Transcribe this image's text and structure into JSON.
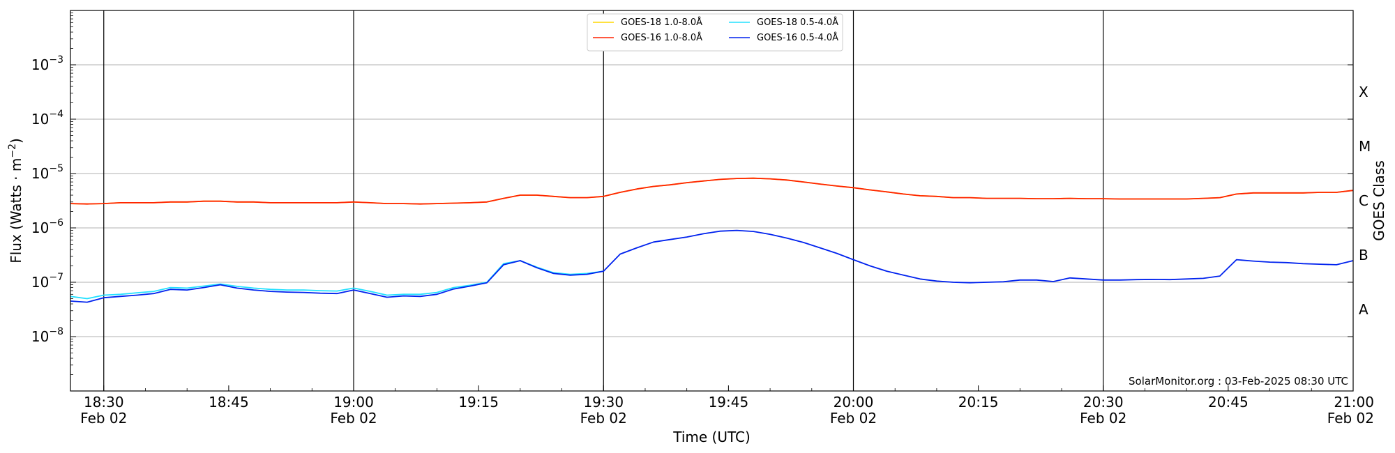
{
  "chart_data": {
    "type": "line",
    "title": "",
    "xlabel": "Time (UTC)",
    "ylabel_main": "Flux (Watts · m",
    "ylabel_exp": "−2",
    "ylabel_close": ")",
    "y2label": "GOES Class",
    "yscale": "log",
    "xlim": [
      "18:26",
      "21:00"
    ],
    "ylim": [
      1e-09,
      0.01
    ],
    "y_ticks": [
      {
        "value": 1e-08,
        "base": "10",
        "exp": "−8"
      },
      {
        "value": 1e-07,
        "base": "10",
        "exp": "−7"
      },
      {
        "value": 1e-06,
        "base": "10",
        "exp": "−6"
      },
      {
        "value": 1e-05,
        "base": "10",
        "exp": "−5"
      },
      {
        "value": 0.0001,
        "base": "10",
        "exp": "−4"
      },
      {
        "value": 0.001,
        "base": "10",
        "exp": "−3"
      }
    ],
    "x_ticks": [
      {
        "time": "18:30",
        "label": "18:30",
        "date": "Feb 02"
      },
      {
        "time": "18:45",
        "label": "18:45",
        "date": ""
      },
      {
        "time": "19:00",
        "label": "19:00",
        "date": "Feb 02"
      },
      {
        "time": "19:15",
        "label": "19:15",
        "date": ""
      },
      {
        "time": "19:30",
        "label": "19:30",
        "date": "Feb 02"
      },
      {
        "time": "19:45",
        "label": "19:45",
        "date": ""
      },
      {
        "time": "20:00",
        "label": "20:00",
        "date": "Feb 02"
      },
      {
        "time": "20:15",
        "label": "20:15",
        "date": ""
      },
      {
        "time": "20:30",
        "label": "20:30",
        "date": "Feb 02"
      },
      {
        "time": "20:45",
        "label": "20:45",
        "date": ""
      },
      {
        "time": "21:00",
        "label": "21:00",
        "date": "Feb 02"
      }
    ],
    "vlines": [
      "18:30",
      "19:00",
      "19:30",
      "20:00",
      "20:30"
    ],
    "grid": "horizontal",
    "goes_classes": [
      {
        "label": "A",
        "value": 3.16e-08
      },
      {
        "label": "B",
        "value": 3.16e-07
      },
      {
        "label": "C",
        "value": 3.16e-06
      },
      {
        "label": "M",
        "value": 3.16e-05
      },
      {
        "label": "X",
        "value": 0.000316
      }
    ],
    "legend": {
      "position": "top-center",
      "entries": [
        {
          "name": "GOES-18 1.0-8.0Å",
          "color": "#ffd700"
        },
        {
          "name": "GOES-16 1.0-8.0Å",
          "color": "#ff2200"
        },
        {
          "name": "GOES-18 0.5-4.0Å",
          "color": "#22e0ff"
        },
        {
          "name": "GOES-16 0.5-4.0Å",
          "color": "#0022ee"
        }
      ]
    },
    "annotation": "SolarMonitor.org : 03-Feb-2025 08:30 UTC",
    "series": [
      {
        "name": "GOES-18 1.0-8.0Å",
        "color": "#ffd700",
        "x": [
          "18:26",
          "18:28",
          "18:30",
          "18:32",
          "18:34",
          "18:36",
          "18:38",
          "18:40",
          "18:42",
          "18:44",
          "18:46",
          "18:48",
          "18:50",
          "18:52",
          "18:54",
          "18:56",
          "18:58",
          "19:00",
          "19:02",
          "19:04",
          "19:06",
          "19:08",
          "19:10",
          "19:12",
          "19:14",
          "19:16",
          "19:18",
          "19:20",
          "19:22",
          "19:24",
          "19:26",
          "19:28",
          "19:30",
          "19:32",
          "19:34",
          "19:36",
          "19:38",
          "19:40",
          "19:42",
          "19:44",
          "19:46",
          "19:48",
          "19:50",
          "19:52",
          "19:54",
          "19:56",
          "19:58",
          "20:00",
          "20:02",
          "20:04",
          "20:06",
          "20:08",
          "20:10",
          "20:12",
          "20:14",
          "20:16",
          "20:18",
          "20:20",
          "20:22",
          "20:24",
          "20:26",
          "20:28",
          "20:30",
          "20:32",
          "20:34",
          "20:36",
          "20:38",
          "20:40",
          "20:42",
          "20:44",
          "20:46",
          "20:48",
          "20:50",
          "20:52",
          "20:54",
          "20:56",
          "20:58",
          "21:00"
        ],
        "y": [
          2.8e-06,
          2.75e-06,
          2.8e-06,
          2.9e-06,
          2.9e-06,
          2.9e-06,
          3e-06,
          3e-06,
          3.1e-06,
          3.1e-06,
          3e-06,
          3e-06,
          2.9e-06,
          2.9e-06,
          2.9e-06,
          2.9e-06,
          2.9e-06,
          3e-06,
          2.9e-06,
          2.8e-06,
          2.8e-06,
          2.75e-06,
          2.8e-06,
          2.85e-06,
          2.9e-06,
          3e-06,
          3.5e-06,
          4e-06,
          4e-06,
          3.8e-06,
          3.6e-06,
          3.6e-06,
          3.8e-06,
          4.5e-06,
          5.2e-06,
          5.8e-06,
          6.2e-06,
          6.8e-06,
          7.3e-06,
          7.8e-06,
          8.1e-06,
          8.2e-06,
          8e-06,
          7.6e-06,
          7e-06,
          6.4e-06,
          5.9e-06,
          5.5e-06,
          5e-06,
          4.6e-06,
          4.2e-06,
          3.9e-06,
          3.8e-06,
          3.6e-06,
          3.6e-06,
          3.5e-06,
          3.5e-06,
          3.5e-06,
          3.45e-06,
          3.45e-06,
          3.5e-06,
          3.45e-06,
          3.45e-06,
          3.4e-06,
          3.4e-06,
          3.4e-06,
          3.4e-06,
          3.4e-06,
          3.5e-06,
          3.6e-06,
          4.2e-06,
          4.4e-06,
          4.4e-06,
          4.4e-06,
          4.4e-06,
          4.5e-06,
          4.5e-06,
          4.9e-06
        ]
      },
      {
        "name": "GOES-16 1.0-8.0Å",
        "color": "#ff2200",
        "x": [
          "18:26",
          "18:28",
          "18:30",
          "18:32",
          "18:34",
          "18:36",
          "18:38",
          "18:40",
          "18:42",
          "18:44",
          "18:46",
          "18:48",
          "18:50",
          "18:52",
          "18:54",
          "18:56",
          "18:58",
          "19:00",
          "19:02",
          "19:04",
          "19:06",
          "19:08",
          "19:10",
          "19:12",
          "19:14",
          "19:16",
          "19:18",
          "19:20",
          "19:22",
          "19:24",
          "19:26",
          "19:28",
          "19:30",
          "19:32",
          "19:34",
          "19:36",
          "19:38",
          "19:40",
          "19:42",
          "19:44",
          "19:46",
          "19:48",
          "19:50",
          "19:52",
          "19:54",
          "19:56",
          "19:58",
          "20:00",
          "20:02",
          "20:04",
          "20:06",
          "20:08",
          "20:10",
          "20:12",
          "20:14",
          "20:16",
          "20:18",
          "20:20",
          "20:22",
          "20:24",
          "20:26",
          "20:28",
          "20:30",
          "20:32",
          "20:34",
          "20:36",
          "20:38",
          "20:40",
          "20:42",
          "20:44",
          "20:46",
          "20:48",
          "20:50",
          "20:52",
          "20:54",
          "20:56",
          "20:58",
          "21:00"
        ],
        "y": [
          2.8e-06,
          2.75e-06,
          2.8e-06,
          2.9e-06,
          2.9e-06,
          2.9e-06,
          3e-06,
          3e-06,
          3.1e-06,
          3.1e-06,
          3e-06,
          3e-06,
          2.9e-06,
          2.9e-06,
          2.9e-06,
          2.9e-06,
          2.9e-06,
          3e-06,
          2.9e-06,
          2.8e-06,
          2.8e-06,
          2.75e-06,
          2.8e-06,
          2.85e-06,
          2.9e-06,
          3e-06,
          3.5e-06,
          4e-06,
          4e-06,
          3.8e-06,
          3.6e-06,
          3.6e-06,
          3.8e-06,
          4.5e-06,
          5.2e-06,
          5.8e-06,
          6.2e-06,
          6.8e-06,
          7.3e-06,
          7.8e-06,
          8.1e-06,
          8.2e-06,
          8e-06,
          7.6e-06,
          7e-06,
          6.4e-06,
          5.9e-06,
          5.5e-06,
          5e-06,
          4.6e-06,
          4.2e-06,
          3.9e-06,
          3.8e-06,
          3.6e-06,
          3.6e-06,
          3.5e-06,
          3.5e-06,
          3.5e-06,
          3.45e-06,
          3.45e-06,
          3.5e-06,
          3.45e-06,
          3.45e-06,
          3.4e-06,
          3.4e-06,
          3.4e-06,
          3.4e-06,
          3.4e-06,
          3.5e-06,
          3.6e-06,
          4.2e-06,
          4.4e-06,
          4.4e-06,
          4.4e-06,
          4.4e-06,
          4.5e-06,
          4.5e-06,
          4.9e-06
        ]
      },
      {
        "name": "GOES-18 0.5-4.0Å",
        "color": "#22e0ff",
        "x": [
          "18:26",
          "18:28",
          "18:30",
          "18:32",
          "18:34",
          "18:36",
          "18:38",
          "18:40",
          "18:42",
          "18:44",
          "18:46",
          "18:48",
          "18:50",
          "18:52",
          "18:54",
          "18:56",
          "18:58",
          "19:00",
          "19:02",
          "19:04",
          "19:06",
          "19:08",
          "19:10",
          "19:12",
          "19:14",
          "19:16",
          "19:18",
          "19:20",
          "19:22",
          "19:24",
          "19:26",
          "19:28",
          "19:30"
        ],
        "y": [
          5.5e-08,
          5e-08,
          5.8e-08,
          6e-08,
          6.4e-08,
          6.8e-08,
          8e-08,
          7.8e-08,
          8.5e-08,
          9.3e-08,
          8.4e-08,
          7.8e-08,
          7.4e-08,
          7.2e-08,
          7.2e-08,
          7e-08,
          6.9e-08,
          7.8e-08,
          6.8e-08,
          5.8e-08,
          6e-08,
          6e-08,
          6.5e-08,
          8e-08,
          8.8e-08,
          1e-07,
          2.2e-07,
          2.5e-07,
          1.9e-07,
          1.5e-07,
          1.4e-07,
          1.45e-07,
          1.6e-07
        ]
      },
      {
        "name": "GOES-16 0.5-4.0Å",
        "color": "#0022ee",
        "x": [
          "18:26",
          "18:28",
          "18:30",
          "18:32",
          "18:34",
          "18:36",
          "18:38",
          "18:40",
          "18:42",
          "18:44",
          "18:46",
          "18:48",
          "18:50",
          "18:52",
          "18:54",
          "18:56",
          "18:58",
          "19:00",
          "19:02",
          "19:04",
          "19:06",
          "19:08",
          "19:10",
          "19:12",
          "19:14",
          "19:16",
          "19:18",
          "19:20",
          "19:22",
          "19:24",
          "19:26",
          "19:28",
          "19:30",
          "19:32",
          "19:34",
          "19:36",
          "19:38",
          "19:40",
          "19:42",
          "19:44",
          "19:46",
          "19:48",
          "19:50",
          "19:52",
          "19:54",
          "19:56",
          "19:58",
          "20:00",
          "20:02",
          "20:04",
          "20:06",
          "20:08",
          "20:10",
          "20:12",
          "20:14",
          "20:16",
          "20:18",
          "20:20",
          "20:22",
          "20:24",
          "20:26",
          "20:28",
          "20:30",
          "20:32",
          "20:34",
          "20:36",
          "20:38",
          "20:40",
          "20:42",
          "20:44",
          "20:46",
          "20:48",
          "20:50",
          "20:52",
          "20:54",
          "20:56",
          "20:58",
          "21:00"
        ],
        "y": [
          4.5e-08,
          4.3e-08,
          5.2e-08,
          5.5e-08,
          5.8e-08,
          6.2e-08,
          7.4e-08,
          7.2e-08,
          8e-08,
          9e-08,
          7.8e-08,
          7.2e-08,
          6.8e-08,
          6.6e-08,
          6.5e-08,
          6.3e-08,
          6.2e-08,
          7.2e-08,
          6.2e-08,
          5.3e-08,
          5.6e-08,
          5.5e-08,
          6e-08,
          7.5e-08,
          8.5e-08,
          9.8e-08,
          2.1e-07,
          2.5e-07,
          1.85e-07,
          1.45e-07,
          1.35e-07,
          1.4e-07,
          1.6e-07,
          3.3e-07,
          4.3e-07,
          5.5e-07,
          6.1e-07,
          6.8e-07,
          7.8e-07,
          8.7e-07,
          9e-07,
          8.6e-07,
          7.6e-07,
          6.5e-07,
          5.4e-07,
          4.3e-07,
          3.4e-07,
          2.6e-07,
          2e-07,
          1.6e-07,
          1.35e-07,
          1.15e-07,
          1.05e-07,
          1e-07,
          9.8e-08,
          1e-07,
          1.02e-07,
          1.1e-07,
          1.1e-07,
          1.03e-07,
          1.2e-07,
          1.15e-07,
          1.1e-07,
          1.1e-07,
          1.12e-07,
          1.13e-07,
          1.12e-07,
          1.15e-07,
          1.18e-07,
          1.3e-07,
          2.6e-07,
          2.45e-07,
          2.35e-07,
          2.3e-07,
          2.2e-07,
          2.15e-07,
          2.1e-07,
          2.5e-07
        ]
      }
    ]
  }
}
